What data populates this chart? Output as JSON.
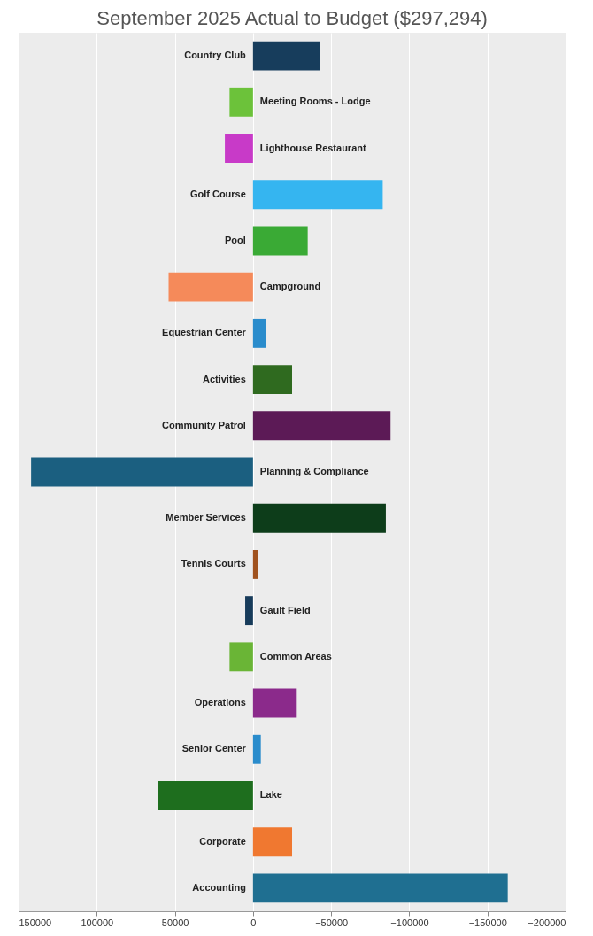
{
  "chart_data": {
    "type": "bar",
    "orientation": "horizontal",
    "title": "September 2025  Actual to Budget  ($297,294)",
    "categories": [
      "Country Club",
      "Meeting Rooms - Lodge",
      "Lighthouse Restaurant",
      "Golf Course",
      "Pool",
      "Campground",
      "Equestrian Center",
      "Activities",
      "Community Patrol",
      "Planning & Compliance",
      "Member Services",
      "Tennis Courts",
      "Gault Field",
      "Common Areas",
      "Operations",
      "Senior Center",
      "Lake",
      "Corporate",
      "Accounting"
    ],
    "values": [
      -43000,
      15000,
      18000,
      -83000,
      -35000,
      54000,
      -8000,
      -25000,
      -88000,
      142000,
      -85000,
      -3000,
      5000,
      15000,
      -28000,
      -5000,
      61000,
      -25000,
      -163000
    ],
    "colors": [
      "#173d5c",
      "#6cc23a",
      "#c83ac8",
      "#35b5f0",
      "#3aaa35",
      "#f58a5a",
      "#2a8ccc",
      "#2f6a1f",
      "#5c1a56",
      "#1b5f80",
      "#0d3d1a",
      "#a0521e",
      "#173b5a",
      "#6ab536",
      "#8b2a8b",
      "#2a8ccc",
      "#1e6e1e",
      "#f07830",
      "#1f6f91"
    ],
    "xlim": [
      150000,
      -200000
    ],
    "xticks": [
      150000,
      100000,
      50000,
      0,
      -50000,
      -100000,
      -150000,
      -200000
    ],
    "grid": "x",
    "legend": false
  }
}
